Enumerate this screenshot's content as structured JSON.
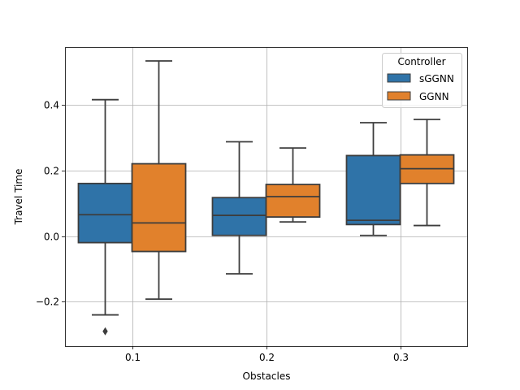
{
  "chart_data": {
    "type": "boxplot",
    "xlabel": "Obstacles",
    "ylabel": "Travel Time",
    "categories": [
      "0.1",
      "0.2",
      "0.3"
    ],
    "ylim": [
      -0.335,
      0.575
    ],
    "yticks": [
      -0.2,
      0.0,
      0.2,
      0.4
    ],
    "ytick_labels": [
      "−0.2",
      "0.0",
      "0.2",
      "0.4"
    ],
    "grid": true,
    "legend": {
      "title": "Controller",
      "position": "top-right"
    },
    "series": [
      {
        "name": "sGGNN",
        "color": "#2f73a8",
        "boxes": [
          {
            "whislo": -0.24,
            "q1": -0.02,
            "med": 0.065,
            "q3": 0.16,
            "whishi": 0.415,
            "fliers": [
              -0.29
            ]
          },
          {
            "whislo": -0.115,
            "q1": 0.002,
            "med": 0.063,
            "q3": 0.117,
            "whishi": 0.287,
            "fliers": []
          },
          {
            "whislo": 0.002,
            "q1": 0.035,
            "med": 0.048,
            "q3": 0.245,
            "whishi": 0.345,
            "fliers": []
          }
        ]
      },
      {
        "name": "GGNN",
        "color": "#e1812c",
        "boxes": [
          {
            "whislo": -0.192,
            "q1": -0.047,
            "med": 0.04,
            "q3": 0.22,
            "whishi": 0.533,
            "fliers": []
          },
          {
            "whislo": 0.043,
            "q1": 0.058,
            "med": 0.12,
            "q3": 0.157,
            "whishi": 0.268,
            "fliers": []
          },
          {
            "whislo": 0.032,
            "q1": 0.16,
            "med": 0.205,
            "q3": 0.247,
            "whishi": 0.355,
            "fliers": []
          }
        ]
      }
    ]
  }
}
